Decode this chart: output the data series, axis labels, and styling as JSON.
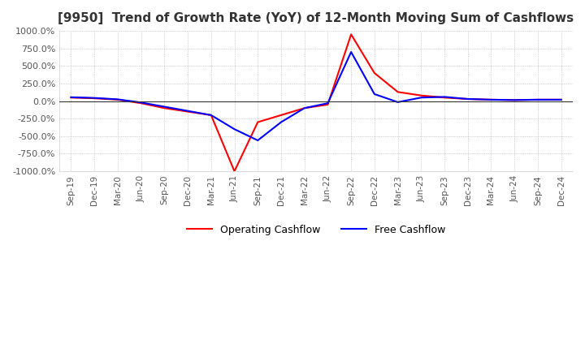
{
  "title": "[9950]  Trend of Growth Rate (YoY) of 12-Month Moving Sum of Cashflows",
  "ylim": [
    -1000,
    1000
  ],
  "yticks": [
    -1000,
    -750,
    -500,
    -250,
    0,
    250,
    500,
    750,
    1000
  ],
  "ytick_labels": [
    "-1000.0%",
    "-750.0%",
    "-500.0%",
    "-250.0%",
    "0.0%",
    "250.0%",
    "500.0%",
    "750.0%",
    "1000.0%"
  ],
  "background_color": "#ffffff",
  "plot_bg_color": "#ffffff",
  "grid_color": "#aaaaaa",
  "operating_color": "#ff0000",
  "free_color": "#0000ff",
  "legend_labels": [
    "Operating Cashflow",
    "Free Cashflow"
  ],
  "x_dates": [
    "Sep-19",
    "Dec-19",
    "Mar-20",
    "Jun-20",
    "Sep-20",
    "Dec-20",
    "Mar-21",
    "Jun-21",
    "Sep-21",
    "Dec-21",
    "Mar-22",
    "Jun-22",
    "Sep-22",
    "Dec-22",
    "Mar-23",
    "Jun-23",
    "Sep-23",
    "Dec-23",
    "Mar-24",
    "Jun-24",
    "Sep-24",
    "Dec-24"
  ],
  "operating_cashflow": [
    50,
    40,
    20,
    -30,
    -100,
    -150,
    -200,
    -1000,
    -300,
    -200,
    -100,
    -50,
    950,
    400,
    130,
    80,
    50,
    30,
    20,
    15,
    20,
    20
  ],
  "free_cashflow": [
    55,
    45,
    25,
    -20,
    -80,
    -140,
    -200,
    -400,
    -560,
    -300,
    -100,
    -30,
    700,
    100,
    -15,
    50,
    60,
    30,
    20,
    15,
    20,
    20
  ]
}
